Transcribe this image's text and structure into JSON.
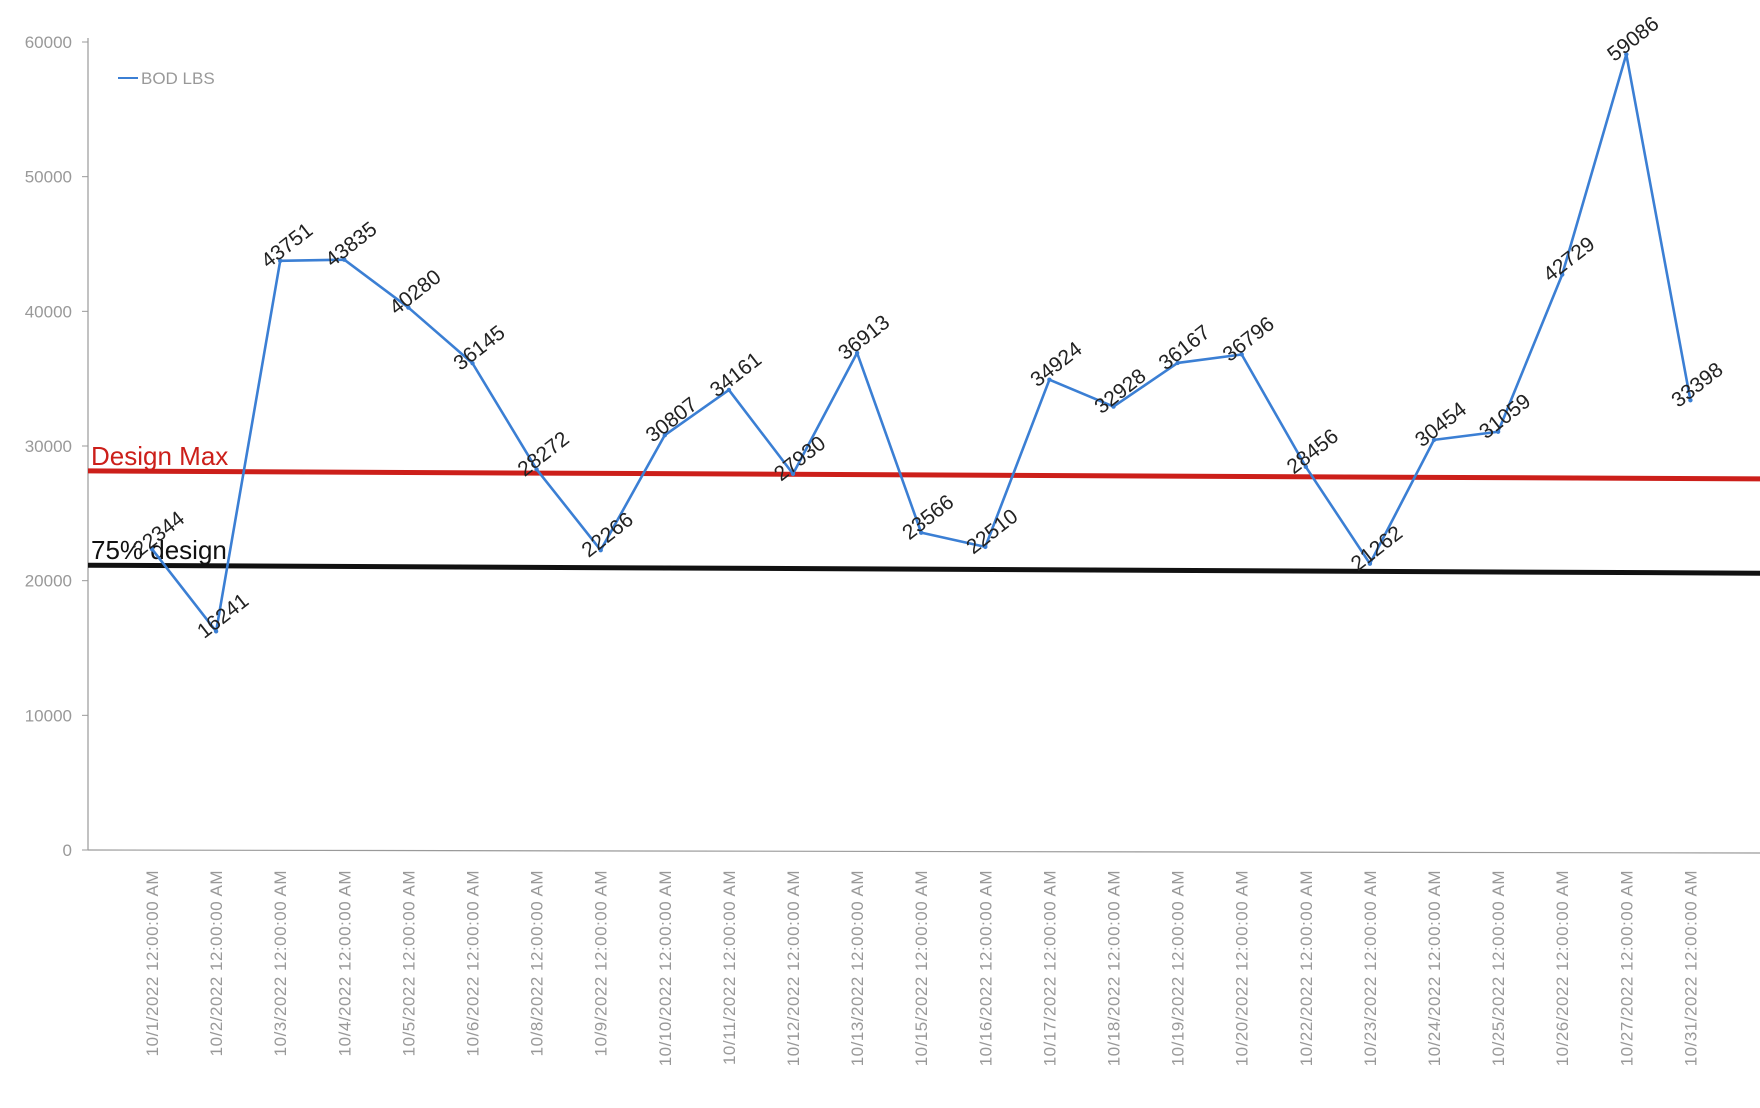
{
  "chart_data": {
    "type": "line",
    "categories": [
      "10/1/2022 12:00:00 AM",
      "10/2/2022 12:00:00 AM",
      "10/3/2022 12:00:00 AM",
      "10/4/2022 12:00:00 AM",
      "10/5/2022 12:00:00 AM",
      "10/6/2022 12:00:00 AM",
      "10/8/2022 12:00:00 AM",
      "10/9/2022 12:00:00 AM",
      "10/10/2022 12:00:00 AM",
      "10/11/2022 12:00:00 AM",
      "10/12/2022 12:00:00 AM",
      "10/13/2022 12:00:00 AM",
      "10/15/2022 12:00:00 AM",
      "10/16/2022 12:00:00 AM",
      "10/17/2022 12:00:00 AM",
      "10/18/2022 12:00:00 AM",
      "10/19/2022 12:00:00 AM",
      "10/20/2022 12:00:00 AM",
      "10/22/2022 12:00:00 AM",
      "10/23/2022 12:00:00 AM",
      "10/24/2022 12:00:00 AM",
      "10/25/2022 12:00:00 AM",
      "10/26/2022 12:00:00 AM",
      "10/27/2022 12:00:00 AM",
      "10/31/2022 12:00:00 AM"
    ],
    "series": [
      {
        "name": "BOD LBS",
        "color": "#3b7fd4",
        "values": [
          22344,
          16241,
          43751,
          43835,
          40280,
          36145,
          28272,
          22266,
          30807,
          34161,
          27930,
          36913,
          23566,
          22510,
          34924,
          32928,
          36167,
          36796,
          28456,
          21262,
          30454,
          31059,
          42729,
          59086,
          33398
        ]
      }
    ],
    "reference_lines": [
      {
        "label": "Design Max",
        "value": 28000,
        "color": "#cc1f1a"
      },
      {
        "label": "75% design",
        "value": 21000,
        "color": "#111111"
      }
    ],
    "ylim": [
      0,
      60000
    ],
    "yticks": [
      0,
      10000,
      20000,
      30000,
      40000,
      50000,
      60000
    ],
    "title": "",
    "xlabel": "",
    "ylabel": "",
    "legend": "top-left",
    "grid": false
  }
}
